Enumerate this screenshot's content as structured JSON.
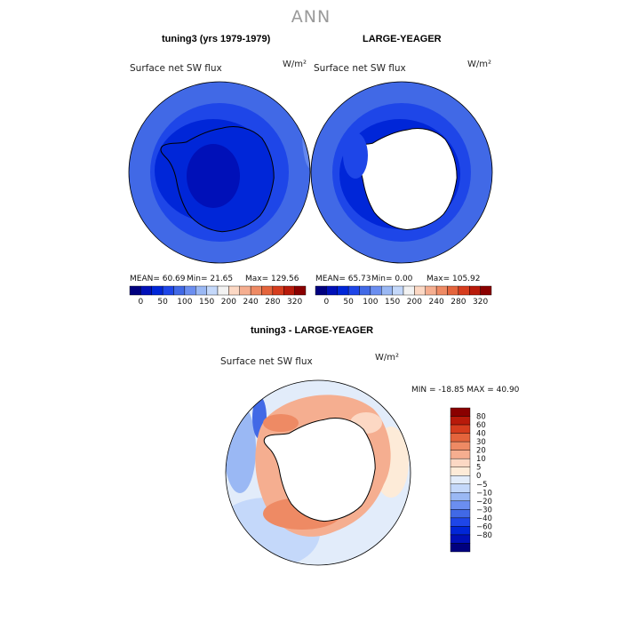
{
  "season": "ANN",
  "colors": {
    "abs_scale": [
      "#00007f",
      "#0010b8",
      "#0026d8",
      "#1e46e8",
      "#4169e6",
      "#6b8ef0",
      "#9ab8f4",
      "#c4d8fa",
      "#f2f2f2",
      "#fcd8c4",
      "#f5ae90",
      "#ee8a64",
      "#e4643c",
      "#d63d1e",
      "#b81a0a",
      "#8a0000"
    ],
    "diff_scale": [
      "#00007f",
      "#0010b8",
      "#0026d8",
      "#1e46e8",
      "#4169e6",
      "#6b8ef0",
      "#9ab8f4",
      "#c4d8fa",
      "#e2ecfa",
      "#fdebd8",
      "#fcd8c4",
      "#f5ae90",
      "#ee8a64",
      "#e4643c",
      "#d63d1e",
      "#b81a0a",
      "#8a0000"
    ]
  },
  "chart_data": [
    {
      "type": "heatmap",
      "projection": "south polar stereographic",
      "title": "tuning3 (yrs 1979-1979)",
      "variable": "Surface net SW flux",
      "units": "W/m²",
      "stats": {
        "mean": "MEAN=  60.69",
        "min": "Min=  21.65",
        "max": "Max= 129.56"
      },
      "colorbar_ticks": [
        "0",
        "50",
        "100",
        "150",
        "200",
        "240",
        "280",
        "320"
      ]
    },
    {
      "type": "heatmap",
      "projection": "south polar stereographic",
      "title": "LARGE-YEAGER",
      "variable": "Surface net SW flux",
      "units": "W/m²",
      "stats": {
        "mean": "MEAN=  65.73",
        "min": "Min=   0.00",
        "max": "Max= 105.92"
      },
      "colorbar_ticks": [
        "0",
        "50",
        "100",
        "150",
        "200",
        "240",
        "280",
        "320"
      ]
    },
    {
      "type": "heatmap",
      "projection": "south polar stereographic",
      "title": "tuning3 - LARGE-YEAGER",
      "variable": "Surface net SW flux",
      "units": "W/m²",
      "stats": {
        "minmax": "MIN = -18.85  MAX =   40.90"
      },
      "colorbar_levels": [
        "80",
        "60",
        "40",
        "30",
        "20",
        "10",
        "5",
        "0",
        "−5",
        "−10",
        "−20",
        "−30",
        "−40",
        "−60",
        "−80"
      ]
    }
  ]
}
